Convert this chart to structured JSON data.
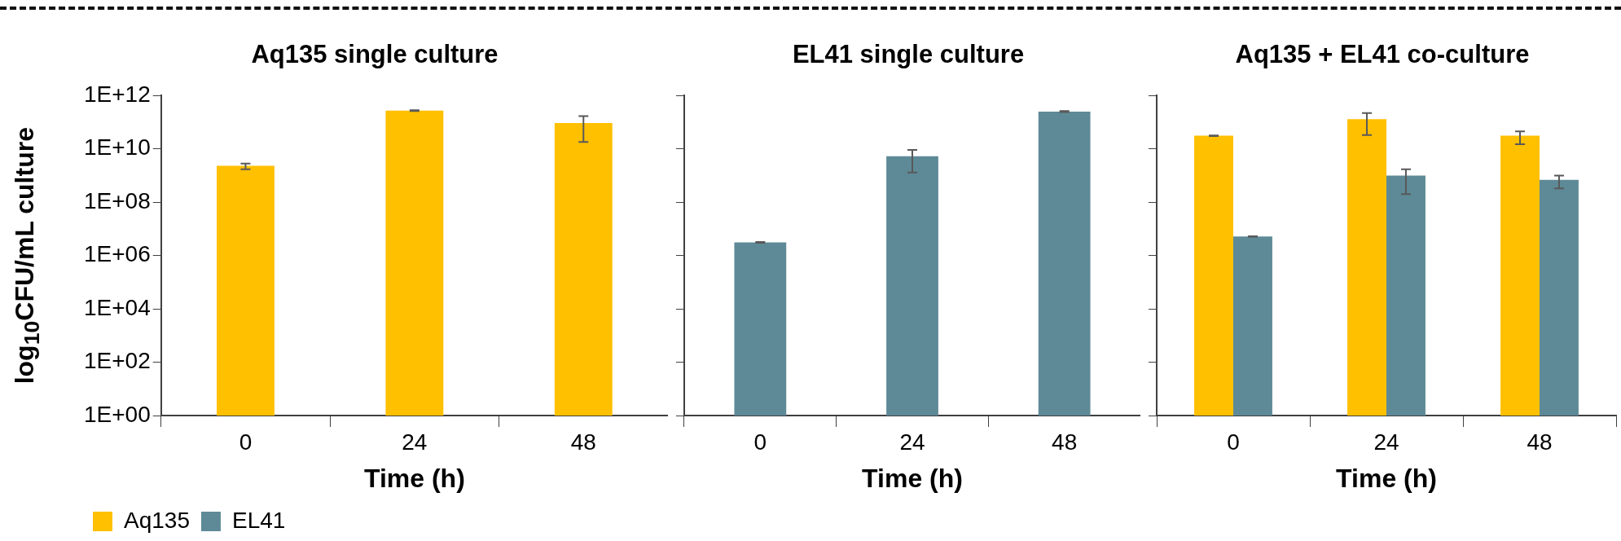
{
  "chart_data": [
    {
      "type": "bar",
      "title": "Aq135 single culture",
      "xlabel": "Time (h)",
      "ylabel": "log$_{10}$CFU/mL culture",
      "categories": [
        "0",
        "24",
        "48"
      ],
      "log": "y",
      "ylim": [
        1,
        1000000000000.0
      ],
      "yticks": [
        {
          "value": 1,
          "label": "1E+00"
        },
        {
          "value": 100,
          "label": "1E+02"
        },
        {
          "value": 10000,
          "label": "1E+04"
        },
        {
          "value": 1000000,
          "label": "1E+06"
        },
        {
          "value": 100000000,
          "label": "1E+08"
        },
        {
          "value": 10000000000,
          "label": "1E+10"
        },
        {
          "value": 1000000000000,
          "label": "1E+12"
        }
      ],
      "grid": false,
      "legend": "bottom left",
      "series": [
        {
          "name": "Aq135",
          "color": "#ffc000",
          "values": [
            2300000000.0,
            270000000000.0,
            93000000000.0
          ],
          "errors": [
            [
              1700000000.0,
              2800000000.0
            ],
            [
              260000000000.0,
              280000000000.0
            ],
            [
              18000000000.0,
              170000000000.0
            ]
          ]
        },
        {
          "name": "EL41",
          "color": "#5e8a97",
          "values": [
            null,
            null,
            null
          ]
        }
      ]
    },
    {
      "type": "bar",
      "title": "EL41 single culture",
      "xlabel": "Time (h)",
      "categories": [
        "0",
        "24",
        "48"
      ],
      "log": "y",
      "ylim": [
        1,
        1000000000000.0
      ],
      "yticks": [
        1,
        100,
        10000,
        1000000,
        100000000,
        10000000000,
        1000000000000
      ],
      "grid": false,
      "tick_labels": "x",
      "series": [
        {
          "color": "#5e8a97",
          "values": [
            3100000.0,
            5300000000.0,
            250000000000.0
          ],
          "errors": [
            [
              3000000.0,
              3200000.0
            ],
            [
              1300000000.0,
              9100000000.0
            ],
            [
              240000000000.0,
              260000000000.0
            ]
          ]
        }
      ]
    },
    {
      "type": "bar",
      "title": "Aq135 + EL41 co-culture",
      "xlabel": "Time (h)",
      "categories": [
        "0",
        "24",
        "48"
      ],
      "log": "y",
      "ylim": [
        1,
        1000000000000.0
      ],
      "yticks": [
        1,
        100,
        10000,
        1000000,
        100000000,
        10000000000,
        1000000000000
      ],
      "grid": false,
      "tick_labels": "x",
      "series": [
        {
          "color": "#ffc000",
          "values": [
            31000000000.0,
            130000000000.0,
            31000000000.0
          ],
          "errors": [
            [
              30000000000.0,
              32000000000.0
            ],
            [
              33000000000.0,
              220000000000.0
            ],
            [
              15000000000.0,
              45000000000.0
            ]
          ]
        },
        {
          "color": "#5e8a97",
          "values": [
            5200000.0,
            1000000000.0,
            690000000.0
          ],
          "errors": [
            [
              5100000.0,
              5300000.0
            ],
            [
              200000000.0,
              1700000000.0
            ],
            [
              330000000.0,
              1000000000.0
            ]
          ]
        }
      ]
    }
  ]
}
